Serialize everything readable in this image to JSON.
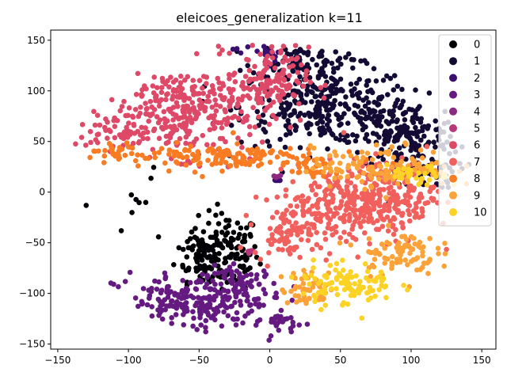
{
  "chart_data": {
    "type": "scatter",
    "title": "eleicoes_generalization k=11",
    "xlabel": "",
    "ylabel": "",
    "xlim": [
      -155,
      160
    ],
    "ylim": [
      -155,
      160
    ],
    "x_ticks": [
      -150,
      -100,
      -50,
      0,
      50,
      100,
      150
    ],
    "y_ticks": [
      -150,
      -100,
      -50,
      0,
      50,
      100,
      150
    ],
    "grid": false,
    "legend_position": "upper right",
    "series": [
      {
        "name": "0",
        "color": "#000004",
        "regions": [
          [
            -90,
            -10,
            -35,
            45
          ],
          [
            -140,
            -15,
            -80,
            30
          ],
          [
            -30,
            -60,
            20,
            35
          ],
          [
            -50,
            -60,
            15,
            25
          ]
        ]
      },
      {
        "name": "1",
        "color": "#140b34",
        "regions": [
          [
            40,
            85,
            55,
            35
          ],
          [
            95,
            55,
            35,
            30
          ],
          [
            20,
            130,
            30,
            15
          ],
          [
            110,
            20,
            20,
            15
          ]
        ]
      },
      {
        "name": "2",
        "color": "#3b0f70",
        "regions": [
          [
            -10,
            140,
            15,
            5
          ],
          [
            0,
            130,
            5,
            5
          ],
          [
            5,
            12,
            4,
            3
          ]
        ]
      },
      {
        "name": "3",
        "color": "#641a80",
        "regions": [
          [
            -55,
            -110,
            50,
            25
          ],
          [
            -20,
            -95,
            25,
            20
          ],
          [
            10,
            -130,
            15,
            10
          ]
        ]
      },
      {
        "name": "4",
        "color": "#8c2981",
        "regions": [
          [
            5,
            15,
            3,
            2
          ]
        ]
      },
      {
        "name": "5",
        "color": "#b73779",
        "regions": [
          [
            -15,
            -58,
            2,
            2
          ]
        ]
      },
      {
        "name": "6",
        "color": "#de4968",
        "regions": [
          [
            -60,
            80,
            50,
            40
          ],
          [
            0,
            110,
            25,
            30
          ],
          [
            -110,
            60,
            15,
            15
          ]
        ]
      },
      {
        "name": "7",
        "color": "#f1605d",
        "regions": [
          [
            55,
            -15,
            45,
            35
          ],
          [
            10,
            -40,
            20,
            20
          ],
          [
            85,
            0,
            30,
            30
          ]
        ]
      },
      {
        "name": "8",
        "color": "#f97c22",
        "regions": [
          [
            -40,
            35,
            70,
            12
          ],
          [
            25,
            25,
            15,
            10
          ],
          [
            -110,
            40,
            15,
            8
          ]
        ]
      },
      {
        "name": "9",
        "color": "#fba238",
        "regions": [
          [
            80,
            25,
            45,
            18
          ],
          [
            30,
            -95,
            20,
            15
          ],
          [
            90,
            -60,
            25,
            20
          ]
        ]
      },
      {
        "name": "10",
        "color": "#fcd225",
        "regions": [
          [
            55,
            -90,
            30,
            20
          ],
          [
            105,
            15,
            20,
            10
          ]
        ]
      }
    ]
  }
}
